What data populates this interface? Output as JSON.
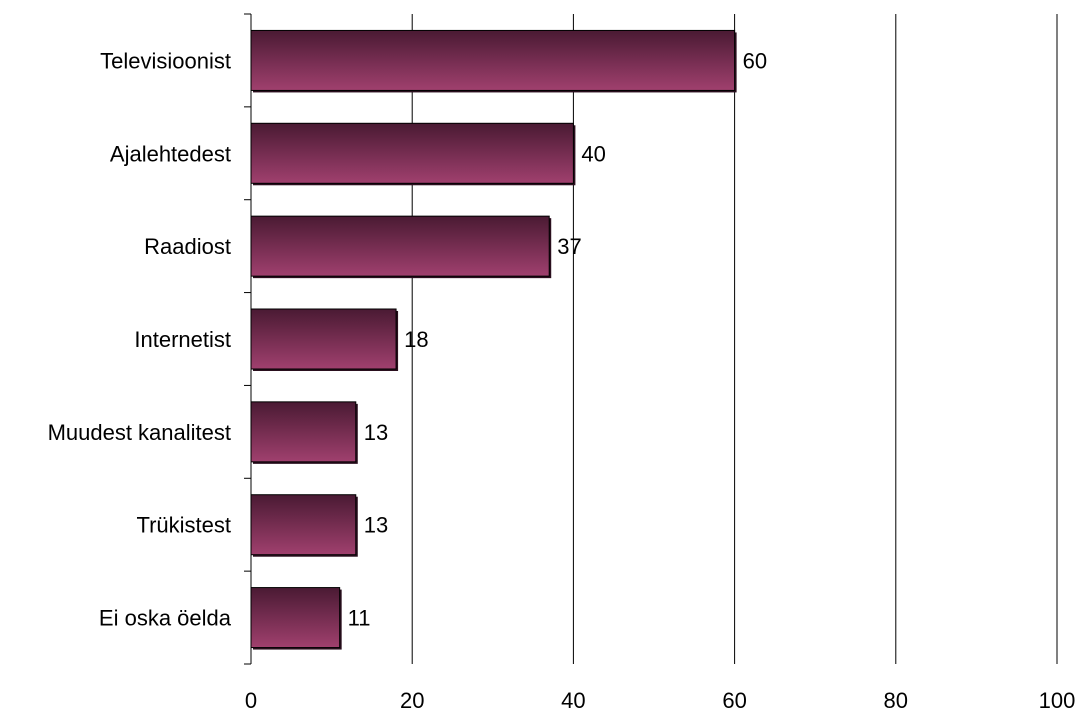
{
  "chart_data": {
    "type": "bar",
    "orientation": "horizontal",
    "categories": [
      "Televisioonist",
      "Ajalehtedest",
      "Raadiost",
      "Internetist",
      "Muudest kanalitest",
      "Trükistest",
      "Ei oska öelda"
    ],
    "values": [
      60,
      40,
      37,
      18,
      13,
      13,
      11
    ],
    "xlim": [
      0,
      100
    ],
    "xticks": [
      0,
      20,
      40,
      60,
      80,
      100
    ],
    "title": "",
    "xlabel": "",
    "ylabel": "",
    "grid": "vertical",
    "legend": "none",
    "colors": {
      "bar_top": "#4a1a33",
      "bar_bottom": "#a0406e",
      "bar_edge": "#000000",
      "grid": "#000000"
    }
  }
}
